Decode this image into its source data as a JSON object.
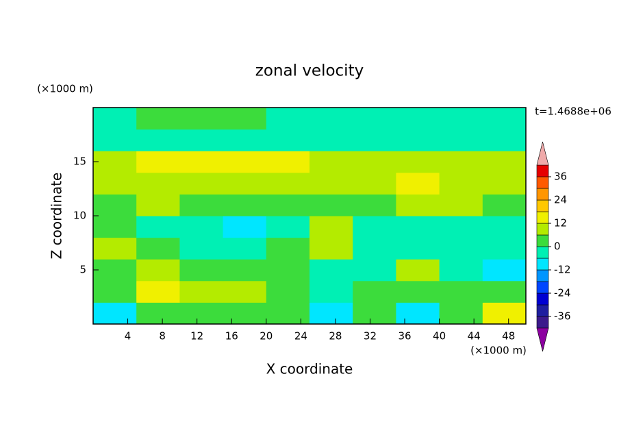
{
  "chart_data": {
    "type": "contour",
    "title": "zonal velocity",
    "xlabel": "X coordinate",
    "ylabel": "Z coordinate",
    "x_unit": "(×1000 m)",
    "y_unit": "(×1000 m)",
    "annotation": "t=1.4688e+06",
    "xlim": [
      0,
      50
    ],
    "ylim": [
      0,
      20
    ],
    "xticks": [
      4,
      8,
      12,
      16,
      20,
      24,
      28,
      32,
      36,
      40,
      44,
      48
    ],
    "yticks": [
      5,
      10,
      15
    ],
    "x": [
      2.5,
      7.5,
      12.5,
      17.5,
      22.5,
      27.5,
      32.5,
      37.5,
      42.5,
      47.5
    ],
    "z": [
      1,
      3,
      5,
      7,
      9,
      11,
      13,
      15,
      17,
      19
    ],
    "values": [
      [
        -8,
        3,
        4,
        3,
        0,
        -10,
        0,
        -12,
        4,
        14
      ],
      [
        5,
        12,
        8,
        8,
        2,
        -6,
        2,
        2,
        0,
        3
      ],
      [
        4,
        6,
        5,
        4,
        2,
        -3,
        -2,
        8,
        -4,
        -8
      ],
      [
        10,
        2,
        -4,
        -3,
        1,
        8,
        -4,
        -3,
        -4,
        -4
      ],
      [
        2,
        -6,
        -5,
        -10,
        -2,
        8,
        -3,
        -4,
        -6,
        -3
      ],
      [
        4,
        6,
        3,
        4,
        3,
        4,
        5,
        6,
        6,
        5
      ],
      [
        8,
        8,
        8,
        9,
        9,
        10,
        11,
        12,
        11,
        9
      ],
      [
        10,
        12,
        12,
        12,
        12,
        11,
        10,
        11,
        11,
        10
      ],
      [
        -4,
        -5,
        -6,
        -4,
        -5,
        -4,
        -3,
        -4,
        -3,
        -3
      ],
      [
        -3,
        2,
        4,
        5,
        -2,
        -3,
        -3,
        -4,
        -2,
        -3
      ]
    ],
    "levels": [
      -36,
      -30,
      -24,
      -18,
      -12,
      -6,
      0,
      6,
      12,
      18,
      24,
      30,
      36
    ],
    "colors": [
      "#3c1a8c",
      "#1e1ea0",
      "#0000d2",
      "#0046ff",
      "#0096ff",
      "#00e6ff",
      "#00f0b4",
      "#3cdc3c",
      "#b4eb00",
      "#f0f000",
      "#ffc800",
      "#ff9600",
      "#ff5a00",
      "#e60000"
    ],
    "extend_colors": [
      "#8c00a0",
      "#f0aaaa"
    ],
    "colorbar_ticks": [
      -36,
      -24,
      -12,
      0,
      12,
      24,
      36
    ]
  }
}
